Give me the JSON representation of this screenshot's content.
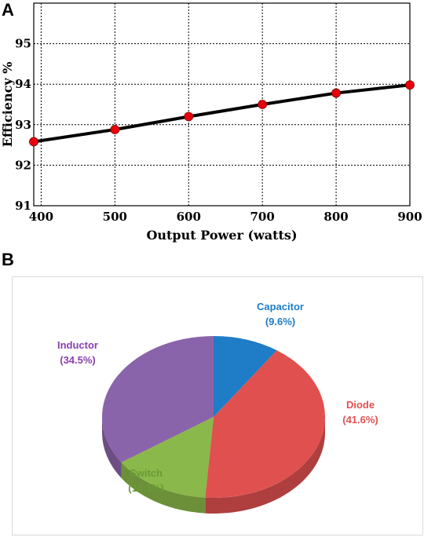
{
  "panels": {
    "a": "A",
    "b": "B"
  },
  "chart_data": [
    {
      "type": "line",
      "title": "",
      "xlabel": "Output Power (watts)",
      "ylabel": "Efficiency %",
      "xlim": [
        390,
        900
      ],
      "ylim": [
        91,
        96
      ],
      "x_ticks": [
        400,
        500,
        600,
        700,
        800,
        900
      ],
      "y_ticks": [
        91,
        92,
        93,
        94,
        95
      ],
      "grid": true,
      "series": [
        {
          "x": [
            390,
            500,
            600,
            700,
            800,
            900
          ],
          "y": [
            92.58,
            92.88,
            93.2,
            93.5,
            93.78,
            93.98
          ]
        }
      ],
      "colors": {
        "line": "#000000",
        "marker": "#e8000b",
        "grid": "#000000"
      }
    },
    {
      "type": "pie",
      "title": "",
      "slices": [
        {
          "label": "Capacitor",
          "pct_label": "(9.6%)",
          "value": 9.6,
          "color": "#1f7cc7",
          "text_color": "#1f7cc7"
        },
        {
          "label": "Diode",
          "pct_label": "(41.6%)",
          "value": 41.6,
          "color": "#e0504f",
          "text_color": "#e0504f"
        },
        {
          "label": "Switch",
          "pct_label": "(14.3%)",
          "value": 14.3,
          "color": "#8ab84a",
          "text_color": "#6a9a36"
        },
        {
          "label": "Inductor",
          "pct_label": "(34.5%)",
          "value": 34.5,
          "color": "#8a64ab",
          "text_color": "#8a3fb0"
        }
      ]
    }
  ]
}
